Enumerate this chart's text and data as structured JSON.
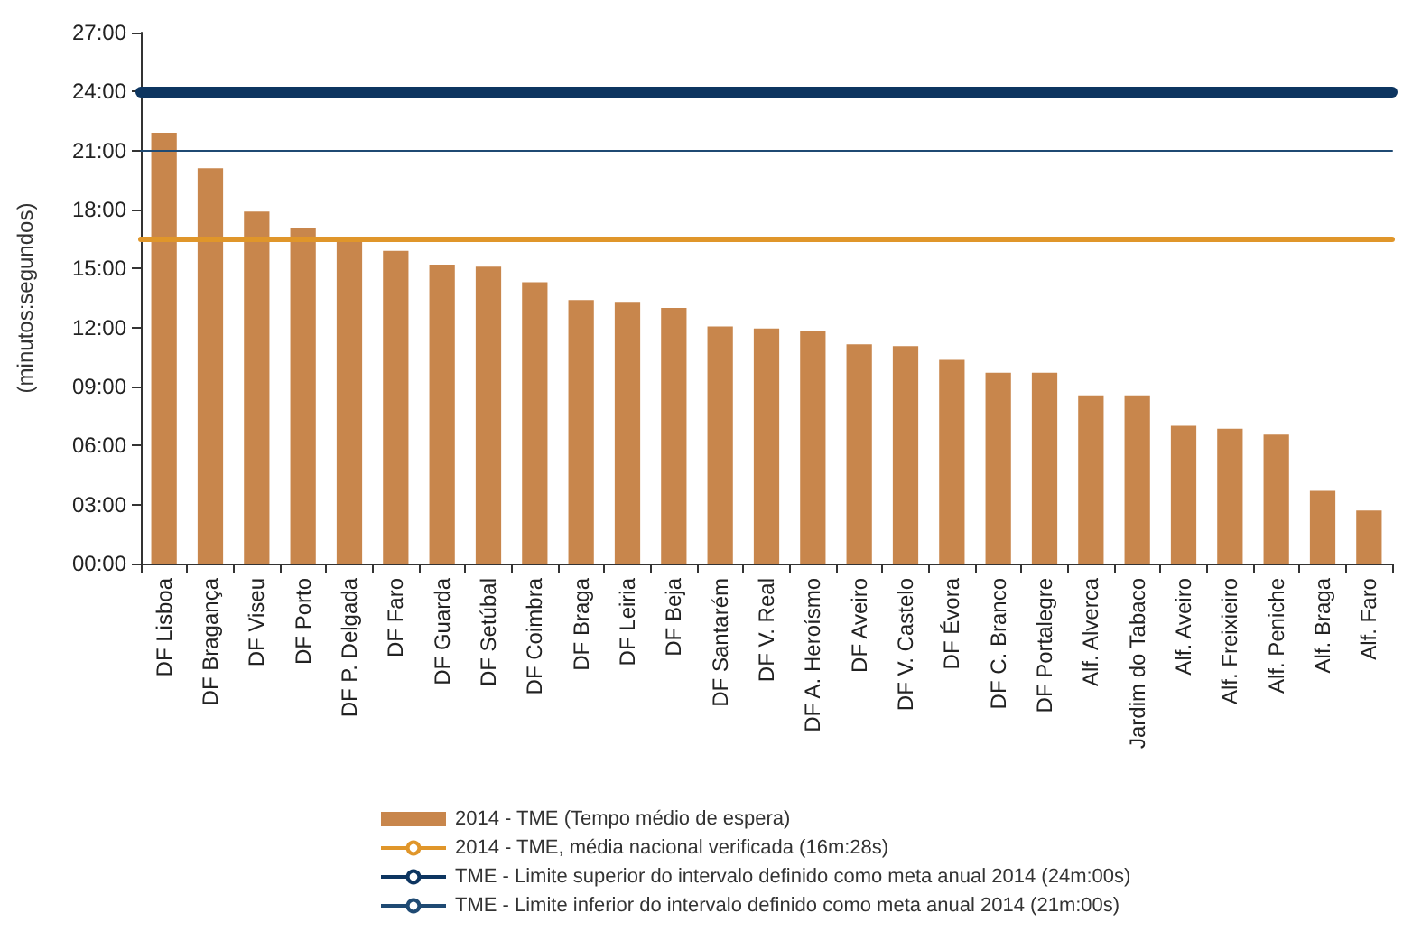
{
  "chart_data": {
    "type": "bar",
    "ylabel": "(minutos:segundos)",
    "categories": [
      "DF Lisboa",
      "DF Bragança",
      "DF Viseu",
      "DF Porto",
      "DF P. Delgada",
      "DF Faro",
      "DF Guarda",
      "DF Setúbal",
      "DF Coimbra",
      "DF Braga",
      "DF Leiria",
      "DF Beja",
      "DF Santarém",
      "DF V. Real",
      "DF A. Heroísmo",
      "DF Aveiro",
      "DF V. Castelo",
      "DF Évora",
      "DF C. Branco",
      "DF Portalegre",
      "Alf. Alverca",
      "Jardim do Tabaco",
      "Alf. Aveiro",
      "Alf. Freixieiro",
      "Alf. Peniche",
      "Alf. Braga",
      "Alf. Faro"
    ],
    "series": [
      {
        "name": "2014 - TME (Tempo médio de espera)",
        "color": "#c8864c",
        "values": [
          21.9,
          20.1,
          17.9,
          17.05,
          16.5,
          15.9,
          15.2,
          15.1,
          14.3,
          13.4,
          13.3,
          13.0,
          12.05,
          11.95,
          11.85,
          11.15,
          11.05,
          10.35,
          9.7,
          9.7,
          8.55,
          8.55,
          7.0,
          6.85,
          6.55,
          3.7,
          2.7
        ]
      }
    ],
    "ylim": [
      0,
      27
    ],
    "yticks": [
      {
        "value": 0,
        "label": "00:00"
      },
      {
        "value": 3,
        "label": "03:00"
      },
      {
        "value": 6,
        "label": "06:00"
      },
      {
        "value": 9,
        "label": "09:00"
      },
      {
        "value": 12,
        "label": "12:00"
      },
      {
        "value": 15,
        "label": "15:00"
      },
      {
        "value": 18,
        "label": "18:00"
      },
      {
        "value": 21,
        "label": "21:00"
      },
      {
        "value": 24,
        "label": "24:00"
      },
      {
        "value": 27,
        "label": "27:00"
      }
    ],
    "ref_lines": [
      {
        "axis": "y",
        "value": 16.4667,
        "label": "2014 - TME, média nacional verificada (16m:28s)",
        "color": "#e0962a"
      },
      {
        "axis": "y",
        "value": 24,
        "label": "TME - Limite superior do intervalo definido como meta anual 2014 (24m:00s)",
        "color": "#0d3560"
      },
      {
        "axis": "y",
        "value": 21,
        "label": "TME - Limite inferior do intervalo definido como meta anual 2014 (21m:00s)",
        "color": "#1f4a73"
      }
    ],
    "grid": false,
    "legend": "bottom"
  }
}
